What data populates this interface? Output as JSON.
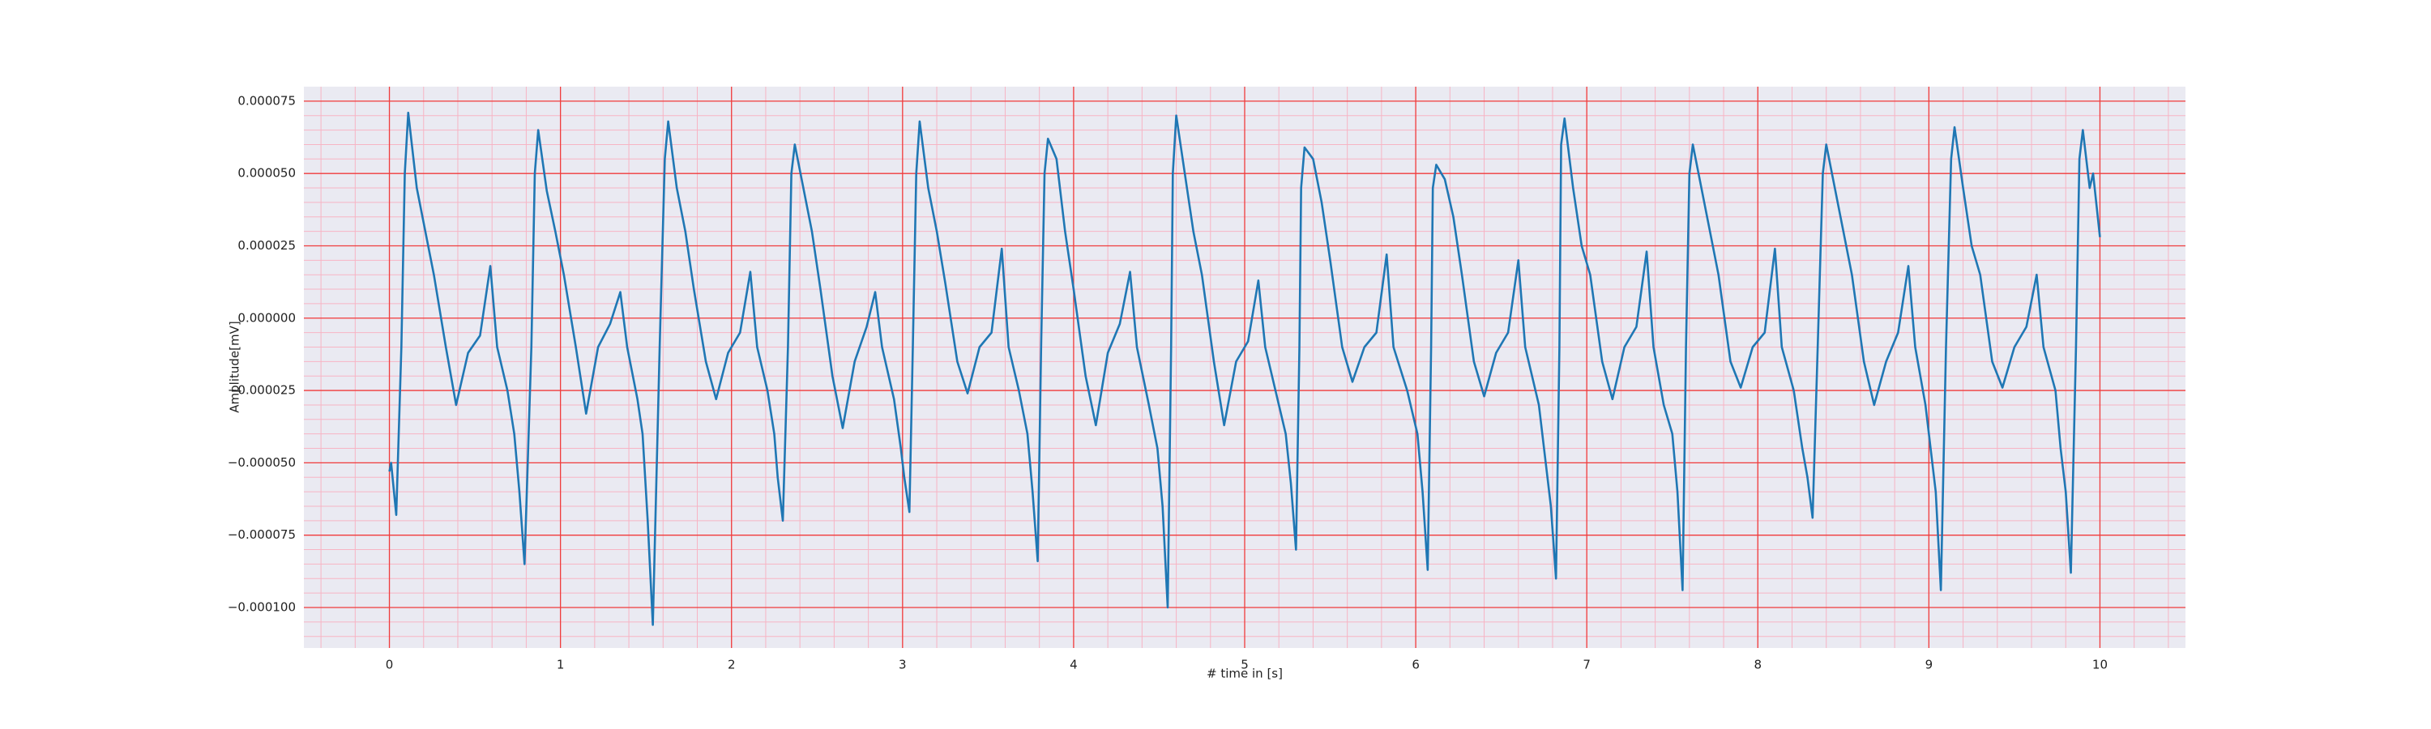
{
  "chart_data": {
    "type": "line",
    "xlabel": "# time in [s]",
    "ylabel": "Amplitude[mV]",
    "xlim": [
      -0.5,
      10.5
    ],
    "ylim": [
      -0.000114,
      8e-05
    ],
    "xticks": [
      0,
      1,
      2,
      3,
      4,
      5,
      6,
      7,
      8,
      9,
      10
    ],
    "yticks": [
      {
        "value": -0.0001,
        "label": "−0.000100"
      },
      {
        "value": -7.5e-05,
        "label": "−0.000075"
      },
      {
        "value": -5e-05,
        "label": "−0.000050"
      },
      {
        "value": -2.5e-05,
        "label": "−0.000025"
      },
      {
        "value": 0,
        "label": "0.000000"
      },
      2.5e-05,
      {
        "value": 5e-05,
        "label": "0.000050"
      },
      7.5e-05
    ],
    "grid": true,
    "minor_grid": true,
    "background": "#eaeaf2",
    "grid_color": "#f03c3c",
    "minor_grid_color": "#f7b4c4",
    "series": [
      {
        "color": "#1f77b4",
        "x": [
          0,
          0.01,
          0.04,
          0.07,
          0.09,
          0.11,
          0.16,
          0.21,
          0.26,
          0.33,
          0.39,
          0.46,
          0.53,
          0.59,
          0.63,
          0.69,
          0.73,
          0.76,
          0.79,
          0.83,
          0.85,
          0.87,
          0.92,
          0.97,
          1.02,
          1.09,
          1.15,
          1.22,
          1.29,
          1.35,
          1.39,
          1.45,
          1.48,
          1.51,
          1.54,
          1.58,
          1.61,
          1.63,
          1.68,
          1.73,
          1.78,
          1.85,
          1.91,
          1.98,
          2.05,
          2.11,
          2.15,
          2.21,
          2.25,
          2.27,
          2.3,
          2.33,
          2.35,
          2.37,
          2.42,
          2.47,
          2.52,
          2.59,
          2.65,
          2.72,
          2.79,
          2.84,
          2.88,
          2.95,
          2.99,
          3.01,
          3.04,
          3.06,
          3.08,
          3.1,
          3.15,
          3.2,
          3.25,
          3.32,
          3.38,
          3.45,
          3.52,
          3.58,
          3.62,
          3.68,
          3.73,
          3.76,
          3.79,
          3.81,
          3.83,
          3.85,
          3.9,
          3.95,
          4.0,
          4.07,
          4.13,
          4.2,
          4.27,
          4.33,
          4.37,
          4.44,
          4.49,
          4.52,
          4.55,
          4.57,
          4.58,
          4.6,
          4.65,
          4.7,
          4.75,
          4.82,
          4.88,
          4.95,
          5.02,
          5.08,
          5.12,
          5.2,
          5.24,
          5.27,
          5.3,
          5.32,
          5.33,
          5.35,
          5.4,
          5.45,
          5.5,
          5.57,
          5.63,
          5.7,
          5.77,
          5.83,
          5.87,
          5.95,
          6.01,
          6.04,
          6.07,
          6.09,
          6.1,
          6.12,
          6.17,
          6.22,
          6.27,
          6.34,
          6.4,
          6.47,
          6.54,
          6.6,
          6.64,
          6.72,
          6.76,
          6.79,
          6.82,
          6.84,
          6.85,
          6.87,
          6.92,
          6.97,
          7.02,
          7.09,
          7.15,
          7.22,
          7.29,
          7.35,
          7.39,
          7.45,
          7.5,
          7.53,
          7.56,
          7.58,
          7.6,
          7.62,
          7.67,
          7.72,
          7.77,
          7.84,
          7.9,
          7.97,
          8.04,
          8.1,
          8.14,
          8.21,
          8.26,
          8.29,
          8.32,
          8.35,
          8.38,
          8.4,
          8.45,
          8.5,
          8.55,
          8.62,
          8.68,
          8.75,
          8.82,
          8.88,
          8.92,
          8.98,
          9.01,
          9.04,
          9.07,
          9.1,
          9.13,
          9.15,
          9.2,
          9.25,
          9.3,
          9.37,
          9.43,
          9.5,
          9.57,
          9.63,
          9.67,
          9.74,
          9.77,
          9.8,
          9.83,
          9.86,
          9.88,
          9.9,
          9.94,
          9.96,
          10.0
        ],
        "values": [
          -5.3e-05,
          -5e-05,
          -6.8e-05,
          -1e-05,
          5e-05,
          7.1e-05,
          4.5e-05,
          3e-05,
          1.5e-05,
          -1e-05,
          -3e-05,
          -1.2e-05,
          -6e-06,
          1.8e-05,
          -1e-05,
          -2.5e-05,
          -4e-05,
          -6e-05,
          -8.5e-05,
          -1e-05,
          5e-05,
          6.5e-05,
          4.4e-05,
          3e-05,
          1.5e-05,
          -1e-05,
          -3.3e-05,
          -1e-05,
          -2e-06,
          9e-06,
          -1e-05,
          -2.8e-05,
          -4e-05,
          -7e-05,
          -0.000106,
          -1e-05,
          5.5e-05,
          6.8e-05,
          4.5e-05,
          3e-05,
          1e-05,
          -1.5e-05,
          -2.8e-05,
          -1.2e-05,
          -5e-06,
          1.6e-05,
          -1e-05,
          -2.5e-05,
          -4e-05,
          -5.5e-05,
          -7e-05,
          -1e-05,
          5e-05,
          6e-05,
          4.5e-05,
          3e-05,
          1e-05,
          -2e-05,
          -3.8e-05,
          -1.5e-05,
          -3e-06,
          9e-06,
          -1e-05,
          -2.8e-05,
          -4.5e-05,
          -5.5e-05,
          -6.7e-05,
          -1e-05,
          5e-05,
          6.8e-05,
          4.5e-05,
          3e-05,
          1.2e-05,
          -1.5e-05,
          -2.6e-05,
          -1e-05,
          -5e-06,
          2.4e-05,
          -1e-05,
          -2.5e-05,
          -4e-05,
          -6e-05,
          -8.4e-05,
          -1e-05,
          5e-05,
          6.2e-05,
          5.5e-05,
          3e-05,
          1e-05,
          -2e-05,
          -3.7e-05,
          -1.2e-05,
          -2e-06,
          1.6e-05,
          -1e-05,
          -3e-05,
          -4.5e-05,
          -6.5e-05,
          -0.0001,
          -1e-05,
          5e-05,
          7e-05,
          5e-05,
          3e-05,
          1.5e-05,
          -1.5e-05,
          -3.7e-05,
          -1.5e-05,
          -8e-06,
          1.3e-05,
          -1e-05,
          -3e-05,
          -4e-05,
          -5.7e-05,
          -8e-05,
          -1e-05,
          4.5e-05,
          5.9e-05,
          5.5e-05,
          4e-05,
          2e-05,
          -1e-05,
          -2.2e-05,
          -1e-05,
          -5e-06,
          2.2e-05,
          -1e-05,
          -2.5e-05,
          -4e-05,
          -6e-05,
          -8.7e-05,
          -1e-05,
          4.5e-05,
          5.3e-05,
          4.8e-05,
          3.5e-05,
          1.5e-05,
          -1.5e-05,
          -2.7e-05,
          -1.2e-05,
          -5e-06,
          2e-05,
          -1e-05,
          -3e-05,
          -5e-05,
          -6.5e-05,
          -9e-05,
          -1e-05,
          6e-05,
          6.9e-05,
          4.5e-05,
          2.5e-05,
          1.5e-05,
          -1.5e-05,
          -2.8e-05,
          -1e-05,
          -3e-06,
          2.3e-05,
          -1e-05,
          -3e-05,
          -4e-05,
          -6e-05,
          -9.4e-05,
          -1e-05,
          5e-05,
          6e-05,
          4.5e-05,
          3e-05,
          1.5e-05,
          -1.5e-05,
          -2.4e-05,
          -1e-05,
          -5e-06,
          2.4e-05,
          -1e-05,
          -2.5e-05,
          -4.5e-05,
          -5.5e-05,
          -6.9e-05,
          -1e-05,
          5e-05,
          6e-05,
          4.5e-05,
          3e-05,
          1.5e-05,
          -1.5e-05,
          -3e-05,
          -1.5e-05,
          -5e-06,
          1.8e-05,
          -1e-05,
          -3e-05,
          -4.5e-05,
          -6e-05,
          -9.4e-05,
          -1e-05,
          5.5e-05,
          6.6e-05,
          4.5e-05,
          2.5e-05,
          1.5e-05,
          -1.5e-05,
          -2.4e-05,
          -1e-05,
          -3e-06,
          1.5e-05,
          -1e-05,
          -2.5e-05,
          -4.5e-05,
          -6e-05,
          -8.8e-05,
          -1e-05,
          5.5e-05,
          6.5e-05,
          4.5e-05,
          5e-05,
          2.8e-05
        ]
      }
    ]
  }
}
